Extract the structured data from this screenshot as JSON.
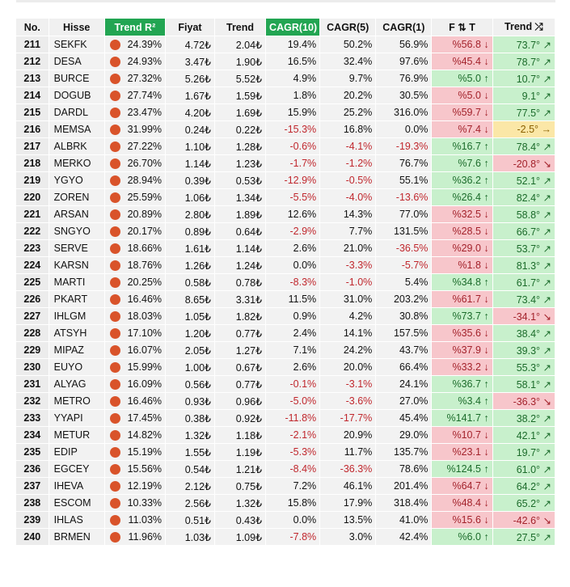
{
  "headers": [
    "No.",
    "Hisse",
    "Trend R²",
    "Fiyat",
    "Trend",
    "CAGR(10)",
    "CAGR(5)",
    "CAGR(1)",
    "F ⇅ T",
    "Trend ⤮"
  ],
  "rows": [
    {
      "no": "211",
      "sym": "SEKFK",
      "r2": "24.39%",
      "fiyat": "4.72₺",
      "trend": "2.04₺",
      "c10": "19.4%",
      "c5": "50.2%",
      "c1": "56.9%",
      "ft": "%56.8 ↓",
      "ft_t": "neg",
      "td": "73.7° ↗",
      "td_t": "pos"
    },
    {
      "no": "212",
      "sym": "DESA",
      "r2": "24.93%",
      "fiyat": "3.47₺",
      "trend": "1.90₺",
      "c10": "16.5%",
      "c5": "32.4%",
      "c1": "97.6%",
      "ft": "%45.4 ↓",
      "ft_t": "neg",
      "td": "78.7° ↗",
      "td_t": "pos"
    },
    {
      "no": "213",
      "sym": "BURCE",
      "r2": "27.32%",
      "fiyat": "5.26₺",
      "trend": "5.52₺",
      "c10": "4.9%",
      "c5": "9.7%",
      "c1": "76.9%",
      "ft": "%5.0 ↑",
      "ft_t": "pos",
      "td": "10.7° ↗",
      "td_t": "pos"
    },
    {
      "no": "214",
      "sym": "DOGUB",
      "r2": "27.74%",
      "fiyat": "1.67₺",
      "trend": "1.59₺",
      "c10": "1.8%",
      "c5": "20.2%",
      "c1": "30.5%",
      "ft": "%5.0 ↓",
      "ft_t": "neg",
      "td": "9.1° ↗",
      "td_t": "pos"
    },
    {
      "no": "215",
      "sym": "DARDL",
      "r2": "23.47%",
      "fiyat": "4.20₺",
      "trend": "1.69₺",
      "c10": "15.9%",
      "c5": "25.2%",
      "c1": "316.0%",
      "ft": "%59.7 ↓",
      "ft_t": "neg",
      "td": "77.5° ↗",
      "td_t": "pos"
    },
    {
      "no": "216",
      "sym": "MEMSA",
      "r2": "31.99%",
      "fiyat": "0.24₺",
      "trend": "0.22₺",
      "c10": "-15.3%",
      "c5": "16.8%",
      "c1": "0.0%",
      "ft": "%7.4 ↓",
      "ft_t": "neg",
      "td": "-2.5° →",
      "td_t": "neu"
    },
    {
      "no": "217",
      "sym": "ALBRK",
      "r2": "27.22%",
      "fiyat": "1.10₺",
      "trend": "1.28₺",
      "c10": "-0.6%",
      "c5": "-4.1%",
      "c1": "-19.3%",
      "ft": "%16.7 ↑",
      "ft_t": "pos",
      "td": "78.4° ↗",
      "td_t": "pos"
    },
    {
      "no": "218",
      "sym": "MERKO",
      "r2": "26.70%",
      "fiyat": "1.14₺",
      "trend": "1.23₺",
      "c10": "-1.7%",
      "c5": "-1.2%",
      "c1": "76.7%",
      "ft": "%7.6 ↑",
      "ft_t": "pos",
      "td": "-20.8° ↘",
      "td_t": "neg"
    },
    {
      "no": "219",
      "sym": "YGYO",
      "r2": "28.94%",
      "fiyat": "0.39₺",
      "trend": "0.53₺",
      "c10": "-12.9%",
      "c5": "-0.5%",
      "c1": "55.1%",
      "ft": "%36.2 ↑",
      "ft_t": "pos",
      "td": "52.1° ↗",
      "td_t": "pos"
    },
    {
      "no": "220",
      "sym": "ZOREN",
      "r2": "25.59%",
      "fiyat": "1.06₺",
      "trend": "1.34₺",
      "c10": "-5.5%",
      "c5": "-4.0%",
      "c1": "-13.6%",
      "ft": "%26.4 ↑",
      "ft_t": "pos",
      "td": "82.4° ↗",
      "td_t": "pos"
    },
    {
      "no": "221",
      "sym": "ARSAN",
      "r2": "20.89%",
      "fiyat": "2.80₺",
      "trend": "1.89₺",
      "c10": "12.6%",
      "c5": "14.3%",
      "c1": "77.0%",
      "ft": "%32.5 ↓",
      "ft_t": "neg",
      "td": "58.8° ↗",
      "td_t": "pos"
    },
    {
      "no": "222",
      "sym": "SNGYO",
      "r2": "20.17%",
      "fiyat": "0.89₺",
      "trend": "0.64₺",
      "c10": "-2.9%",
      "c5": "7.7%",
      "c1": "131.5%",
      "ft": "%28.5 ↓",
      "ft_t": "neg",
      "td": "66.7° ↗",
      "td_t": "pos"
    },
    {
      "no": "223",
      "sym": "SERVE",
      "r2": "18.66%",
      "fiyat": "1.61₺",
      "trend": "1.14₺",
      "c10": "2.6%",
      "c5": "21.0%",
      "c1": "-36.5%",
      "ft": "%29.0 ↓",
      "ft_t": "neg",
      "td": "53.7° ↗",
      "td_t": "pos"
    },
    {
      "no": "224",
      "sym": "KARSN",
      "r2": "18.76%",
      "fiyat": "1.26₺",
      "trend": "1.24₺",
      "c10": "0.0%",
      "c5": "-3.3%",
      "c1": "-5.7%",
      "ft": "%1.8 ↓",
      "ft_t": "neg",
      "td": "81.3° ↗",
      "td_t": "pos"
    },
    {
      "no": "225",
      "sym": "MARTI",
      "r2": "20.25%",
      "fiyat": "0.58₺",
      "trend": "0.78₺",
      "c10": "-8.3%",
      "c5": "-1.0%",
      "c1": "5.4%",
      "ft": "%34.8 ↑",
      "ft_t": "pos",
      "td": "61.7° ↗",
      "td_t": "pos"
    },
    {
      "no": "226",
      "sym": "PKART",
      "r2": "16.46%",
      "fiyat": "8.65₺",
      "trend": "3.31₺",
      "c10": "11.5%",
      "c5": "31.0%",
      "c1": "203.2%",
      "ft": "%61.7 ↓",
      "ft_t": "neg",
      "td": "73.4° ↗",
      "td_t": "pos"
    },
    {
      "no": "227",
      "sym": "IHLGM",
      "r2": "18.03%",
      "fiyat": "1.05₺",
      "trend": "1.82₺",
      "c10": "0.9%",
      "c5": "4.2%",
      "c1": "30.8%",
      "ft": "%73.7 ↑",
      "ft_t": "pos",
      "td": "-34.1° ↘",
      "td_t": "neg"
    },
    {
      "no": "228",
      "sym": "ATSYH",
      "r2": "17.10%",
      "fiyat": "1.20₺",
      "trend": "0.77₺",
      "c10": "2.4%",
      "c5": "14.1%",
      "c1": "157.5%",
      "ft": "%35.6 ↓",
      "ft_t": "neg",
      "td": "38.4° ↗",
      "td_t": "pos"
    },
    {
      "no": "229",
      "sym": "MIPAZ",
      "r2": "16.07%",
      "fiyat": "2.05₺",
      "trend": "1.27₺",
      "c10": "7.1%",
      "c5": "24.2%",
      "c1": "43.7%",
      "ft": "%37.9 ↓",
      "ft_t": "neg",
      "td": "39.3° ↗",
      "td_t": "pos"
    },
    {
      "no": "230",
      "sym": "EUYO",
      "r2": "15.99%",
      "fiyat": "1.00₺",
      "trend": "0.67₺",
      "c10": "2.6%",
      "c5": "20.0%",
      "c1": "66.4%",
      "ft": "%33.2 ↓",
      "ft_t": "neg",
      "td": "55.3° ↗",
      "td_t": "pos"
    },
    {
      "no": "231",
      "sym": "ALYAG",
      "r2": "16.09%",
      "fiyat": "0.56₺",
      "trend": "0.77₺",
      "c10": "-0.1%",
      "c5": "-3.1%",
      "c1": "24.1%",
      "ft": "%36.7 ↑",
      "ft_t": "pos",
      "td": "58.1° ↗",
      "td_t": "pos"
    },
    {
      "no": "232",
      "sym": "METRO",
      "r2": "16.46%",
      "fiyat": "0.93₺",
      "trend": "0.96₺",
      "c10": "-5.0%",
      "c5": "-3.6%",
      "c1": "27.0%",
      "ft": "%3.4 ↑",
      "ft_t": "pos",
      "td": "-36.3° ↘",
      "td_t": "neg"
    },
    {
      "no": "233",
      "sym": "YYAPI",
      "r2": "17.45%",
      "fiyat": "0.38₺",
      "trend": "0.92₺",
      "c10": "-11.8%",
      "c5": "-17.7%",
      "c1": "45.4%",
      "ft": "%141.7 ↑",
      "ft_t": "pos",
      "td": "38.2° ↗",
      "td_t": "pos"
    },
    {
      "no": "234",
      "sym": "METUR",
      "r2": "14.82%",
      "fiyat": "1.32₺",
      "trend": "1.18₺",
      "c10": "-2.1%",
      "c5": "20.9%",
      "c1": "29.0%",
      "ft": "%10.7 ↓",
      "ft_t": "neg",
      "td": "42.1° ↗",
      "td_t": "pos"
    },
    {
      "no": "235",
      "sym": "EDIP",
      "r2": "15.19%",
      "fiyat": "1.55₺",
      "trend": "1.19₺",
      "c10": "-5.3%",
      "c5": "11.7%",
      "c1": "135.7%",
      "ft": "%23.1 ↓",
      "ft_t": "neg",
      "td": "19.7° ↗",
      "td_t": "pos"
    },
    {
      "no": "236",
      "sym": "EGCEY",
      "r2": "15.56%",
      "fiyat": "0.54₺",
      "trend": "1.21₺",
      "c10": "-8.4%",
      "c5": "-36.3%",
      "c1": "78.6%",
      "ft": "%124.5 ↑",
      "ft_t": "pos",
      "td": "61.0° ↗",
      "td_t": "pos"
    },
    {
      "no": "237",
      "sym": "IHEVA",
      "r2": "12.19%",
      "fiyat": "2.12₺",
      "trend": "0.75₺",
      "c10": "7.2%",
      "c5": "46.1%",
      "c1": "201.4%",
      "ft": "%64.7 ↓",
      "ft_t": "neg",
      "td": "64.2° ↗",
      "td_t": "pos"
    },
    {
      "no": "238",
      "sym": "ESCOM",
      "r2": "10.33%",
      "fiyat": "2.56₺",
      "trend": "1.32₺",
      "c10": "15.8%",
      "c5": "17.9%",
      "c1": "318.4%",
      "ft": "%48.4 ↓",
      "ft_t": "neg",
      "td": "65.2° ↗",
      "td_t": "pos"
    },
    {
      "no": "239",
      "sym": "IHLAS",
      "r2": "11.03%",
      "fiyat": "0.51₺",
      "trend": "0.43₺",
      "c10": "0.0%",
      "c5": "13.5%",
      "c1": "41.0%",
      "ft": "%15.6 ↓",
      "ft_t": "neg",
      "td": "-42.6° ↘",
      "td_t": "neg"
    },
    {
      "no": "240",
      "sym": "BRMEN",
      "r2": "11.96%",
      "fiyat": "1.03₺",
      "trend": "1.09₺",
      "c10": "-7.8%",
      "c5": "3.0%",
      "c1": "42.4%",
      "ft": "%6.0 ↑",
      "ft_t": "pos",
      "td": "27.5° ↗",
      "td_t": "pos"
    }
  ],
  "colors": {
    "highlight_header": "#22a552",
    "dot": "#d9532a",
    "negative_text": "#c0272d",
    "positive_bg": "#c8f0cc",
    "negative_bg": "#f7c6cb",
    "neutral_bg": "#fbe7a7"
  }
}
